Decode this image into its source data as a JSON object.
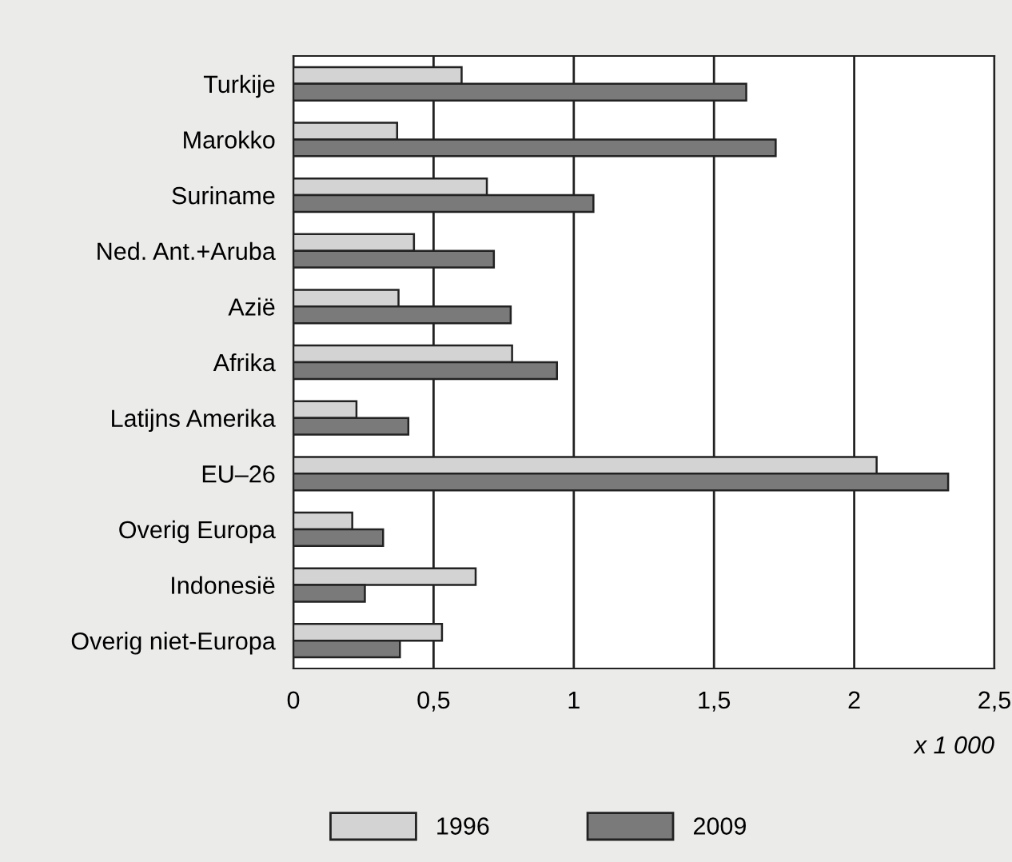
{
  "chart_data": {
    "type": "bar",
    "orientation": "horizontal",
    "xlabel": "x 1 000",
    "categories": [
      "Turkije",
      "Marokko",
      "Suriname",
      "Ned. Ant.+Aruba",
      "Azië",
      "Afrika",
      "Latijns Amerika",
      "EU–26",
      "Overig Europa",
      "Indonesië",
      "Overig niet-Europa"
    ],
    "series": [
      {
        "name": "1996",
        "color": "#d3d3d3",
        "values": [
          0.6,
          0.37,
          0.69,
          0.43,
          0.375,
          0.78,
          0.225,
          2.08,
          0.21,
          0.65,
          0.53
        ]
      },
      {
        "name": "2009",
        "color": "#7a7a7a",
        "values": [
          1.615,
          1.72,
          1.07,
          0.715,
          0.775,
          0.94,
          0.41,
          2.335,
          0.32,
          0.255,
          0.38
        ]
      }
    ],
    "xlim": [
      0,
      2.5
    ],
    "xticks": [
      0,
      {
        "value": 0.5,
        "label": "0,5"
      },
      1,
      {
        "value": 1.5,
        "label": "1,5"
      },
      2,
      {
        "value": 2.5,
        "label": "2,5"
      }
    ],
    "grid": "x",
    "legend": "bottom"
  }
}
